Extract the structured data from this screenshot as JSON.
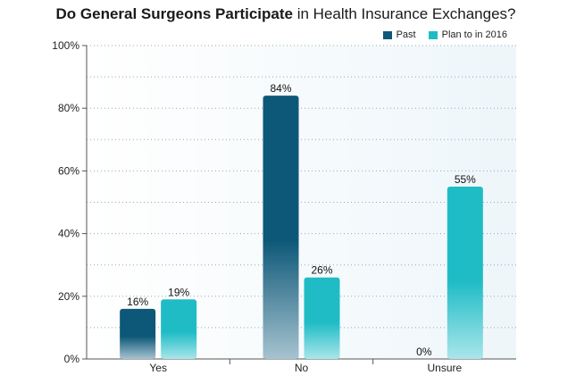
{
  "title": {
    "bold": "Do General Surgeons Participate",
    "rest": " in Health Insurance Exchanges?"
  },
  "colors": {
    "past": "#0d5878",
    "plan": "#1fbcc6",
    "plot_bg": "#eef6fa",
    "grid": "#9aa7b0"
  },
  "legend": [
    {
      "label": "Past",
      "color": "#0d5878"
    },
    {
      "label": "Plan to in 2016",
      "color": "#1fbcc6"
    }
  ],
  "chart_data": {
    "type": "bar",
    "title": "Do General Surgeons Participate in Health Insurance Exchanges?",
    "categories": [
      "Yes",
      "No",
      "Unsure"
    ],
    "series": [
      {
        "name": "Past",
        "values": [
          16,
          84,
          0
        ],
        "labels": [
          "16%",
          "84%",
          "0%"
        ]
      },
      {
        "name": "Plan to in 2016",
        "values": [
          19,
          26,
          55
        ],
        "labels": [
          "19%",
          "26%",
          "55%"
        ]
      }
    ],
    "ylim": [
      0,
      100
    ],
    "yticks": [
      0,
      20,
      40,
      60,
      80,
      100
    ],
    "ytick_labels": [
      "0%",
      "20%",
      "40%",
      "60%",
      "80%",
      "100%"
    ],
    "grid": true,
    "legend_position": "top-right"
  }
}
